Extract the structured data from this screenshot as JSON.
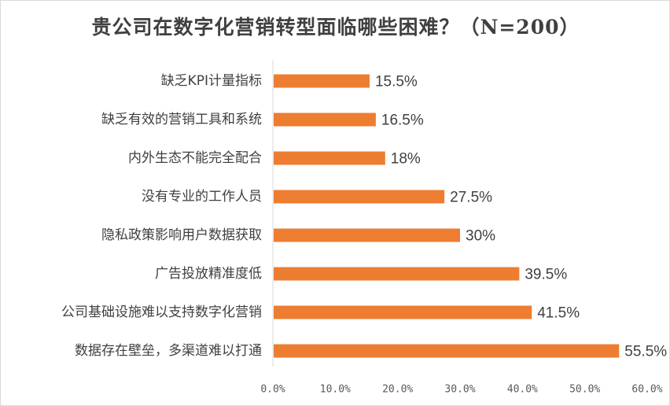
{
  "chart_data": {
    "type": "bar",
    "orientation": "horizontal",
    "title": "贵公司在数字化营销转型面临哪些困难？（N=200）",
    "categories": [
      "缺乏KPI计量指标",
      "缺乏有效的营销工具和系统",
      "内外生态不能完全配合",
      "没有专业的工作人员",
      "隐私政策影响用户数据获取",
      "广告投放精准度低",
      "公司基础设施难以支持数字化营销",
      "数据存在壁垒，多渠道难以打通"
    ],
    "values": [
      15.5,
      16.5,
      18,
      27.5,
      30,
      39.5,
      41.5,
      55.5
    ],
    "value_labels": [
      "15.5%",
      "16.5%",
      "18%",
      "27.5%",
      "30%",
      "39.5%",
      "41.5%",
      "55.5%"
    ],
    "xlim": [
      0,
      60
    ],
    "x_ticks": [
      "0.0%",
      "10.0%",
      "20.0%",
      "30.0%",
      "40.0%",
      "50.0%",
      "60.0%"
    ],
    "xlabel": "",
    "ylabel": "",
    "grid": false,
    "legend": "none",
    "bar_color": "#ED7D31",
    "axis_color": "#d9d9d9"
  }
}
